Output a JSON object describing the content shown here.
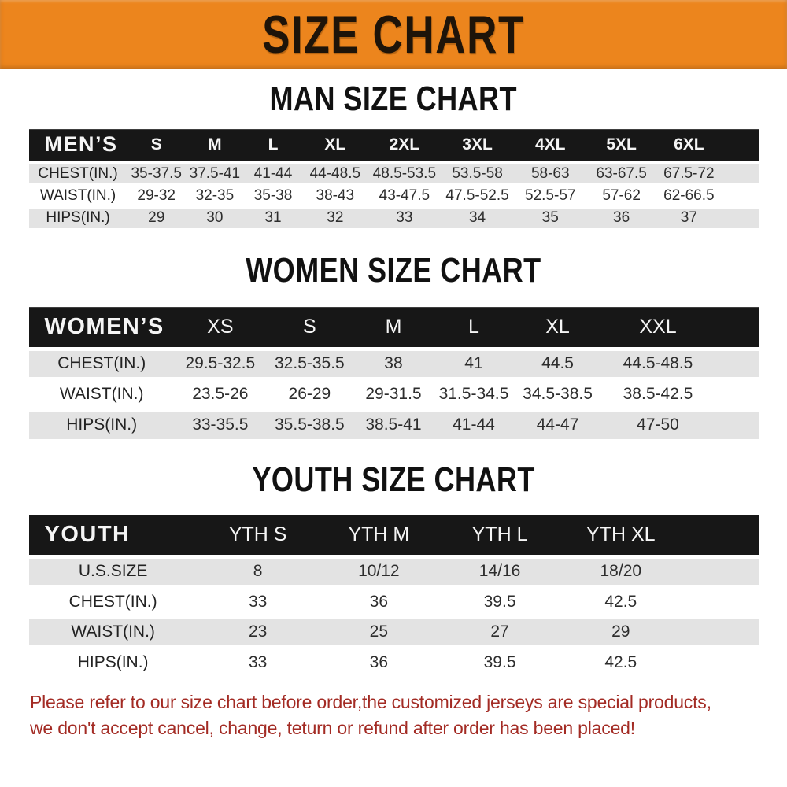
{
  "banner": {
    "title": "SIZE CHART"
  },
  "theme": {
    "banner_bg": "#EC851D",
    "header_bar_bg": "#171717",
    "stripe_gray": "#E3E3E3",
    "footer_red": "#A32B24"
  },
  "sections": [
    {
      "heading": "MAN SIZE CHART",
      "table": {
        "header_label": "MEN’S",
        "columns": [
          "S",
          "M",
          "L",
          "XL",
          "2XL",
          "3XL",
          "4XL",
          "5XL",
          "6XL"
        ],
        "rows": [
          {
            "label": "CHEST(IN.)",
            "values": [
              "35-37.5",
              "37.5-41",
              "41-44",
              "44-48.5",
              "48.5-53.5",
              "53.5-58",
              "58-63",
              "63-67.5",
              "67.5-72"
            ]
          },
          {
            "label": "WAIST(IN.)",
            "values": [
              "29-32",
              "32-35",
              "35-38",
              "38-43",
              "43-47.5",
              "47.5-52.5",
              "52.5-57",
              "57-62",
              "62-66.5"
            ]
          },
          {
            "label": "HIPS(IN.)",
            "values": [
              "29",
              "30",
              "31",
              "32",
              "33",
              "34",
              "35",
              "36",
              "37"
            ]
          }
        ]
      }
    },
    {
      "heading": "WOMEN SIZE CHART",
      "table": {
        "header_label": "WOMEN’S",
        "columns": [
          "XS",
          "S",
          "M",
          "L",
          "XL",
          "XXL"
        ],
        "rows": [
          {
            "label": "CHEST(IN.)",
            "values": [
              "29.5-32.5",
              "32.5-35.5",
              "38",
              "41",
              "44.5",
              "44.5-48.5"
            ]
          },
          {
            "label": "WAIST(IN.)",
            "values": [
              "23.5-26",
              "26-29",
              "29-31.5",
              "31.5-34.5",
              "34.5-38.5",
              "38.5-42.5"
            ]
          },
          {
            "label": "HIPS(IN.)",
            "values": [
              "33-35.5",
              "35.5-38.5",
              "38.5-41",
              "41-44",
              "44-47",
              "47-50"
            ]
          }
        ]
      }
    },
    {
      "heading": "YOUTH SIZE CHART",
      "table": {
        "header_label": "YOUTH",
        "columns": [
          "YTH S",
          "YTH M",
          "YTH L",
          "YTH XL"
        ],
        "rows": [
          {
            "label": "U.S.SIZE",
            "values": [
              "8",
              "10/12",
              "14/16",
              "18/20"
            ]
          },
          {
            "label": "CHEST(IN.)",
            "values": [
              "33",
              "36",
              "39.5",
              "42.5"
            ]
          },
          {
            "label": "WAIST(IN.)",
            "values": [
              "23",
              "25",
              "27",
              "29"
            ]
          },
          {
            "label": "HIPS(IN.)",
            "values": [
              "33",
              "36",
              "39.5",
              "42.5"
            ]
          }
        ]
      }
    }
  ],
  "footer": {
    "line1": "Please refer to our size chart before order,the customized jerseys are special products,",
    "line2": "we don't accept cancel, change, teturn or refund after order has been placed!"
  }
}
